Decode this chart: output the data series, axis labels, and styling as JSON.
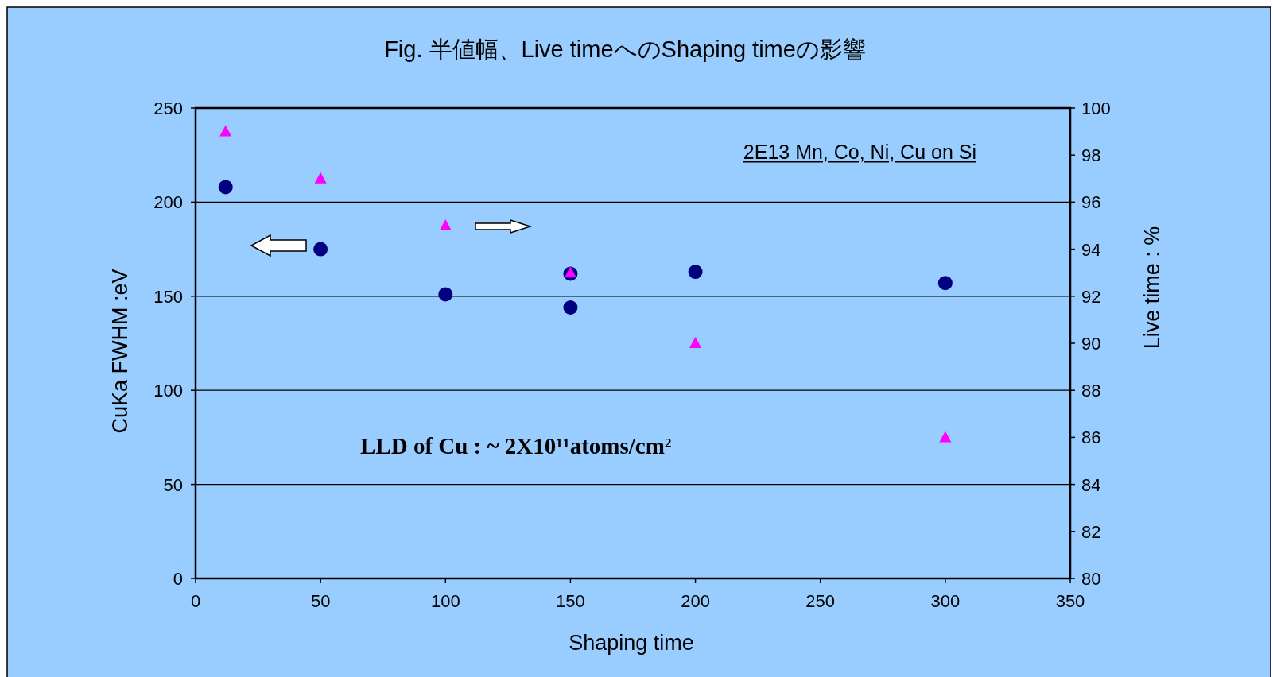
{
  "chart_data": {
    "type": "scatter",
    "title": "Fig.  半値幅、Live timeへのShaping timeの影響",
    "xlabel": "Shaping time",
    "ylabel": "CuKa FWHM :eV",
    "y2label": "Live time : %",
    "annotations": [
      "2E13 Mn, Co, Ni, Cu on Si",
      "LLD of Cu :  ~  2X10¹¹atoms/cm²"
    ],
    "xlim": [
      0,
      350
    ],
    "xticks": [
      0,
      50,
      100,
      150,
      200,
      250,
      300,
      350
    ],
    "ylim": [
      0,
      250
    ],
    "yticks": [
      0,
      50,
      100,
      150,
      200,
      250
    ],
    "y2lim": [
      80,
      100
    ],
    "y2ticks": [
      80,
      82,
      84,
      86,
      88,
      90,
      92,
      94,
      96,
      98,
      100
    ],
    "grid": "y",
    "series": [
      {
        "marker": "circle",
        "color": "#000080",
        "x": [
          12,
          50,
          100,
          150,
          150,
          200,
          300
        ],
        "values": [
          208,
          175,
          151,
          162,
          144,
          163,
          157
        ]
      },
      {
        "marker": "triangle",
        "axis": "y2",
        "color": "#ff00ff",
        "x": [
          12,
          50,
          100,
          150,
          200,
          300
        ],
        "values": [
          99,
          97,
          95,
          93,
          90,
          86
        ]
      }
    ]
  }
}
